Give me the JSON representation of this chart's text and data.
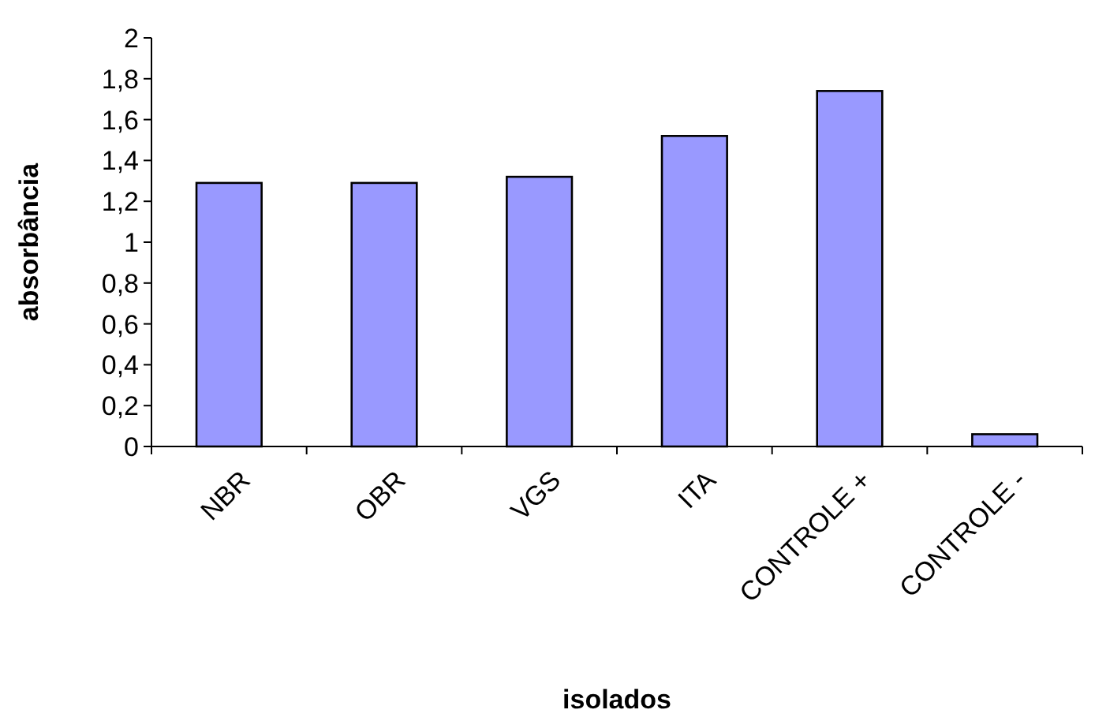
{
  "chart_data": {
    "type": "bar",
    "xlabel": "isolados",
    "ylabel": "absorbância",
    "categories": [
      "NBR",
      "OBR",
      "VGS",
      "ITA",
      "CONTROLE +",
      "CONTROLE -"
    ],
    "values": [
      1.29,
      1.29,
      1.32,
      1.52,
      1.74,
      0.06
    ],
    "color": "#9999ff",
    "ylim": [
      0,
      2
    ],
    "yticks": [
      0,
      {
        "value": 0.2,
        "label": "0,2"
      },
      {
        "value": 0.4,
        "label": "0,4"
      },
      {
        "value": 0.6,
        "label": "0,6"
      },
      {
        "value": 0.8,
        "label": "0,8"
      },
      1,
      {
        "value": 1.2,
        "label": "1,2"
      },
      {
        "value": 1.4,
        "label": "1,4"
      },
      {
        "value": 1.6,
        "label": "1,6"
      },
      {
        "value": 1.8,
        "label": "1,8"
      },
      2
    ],
    "grid": false
  }
}
